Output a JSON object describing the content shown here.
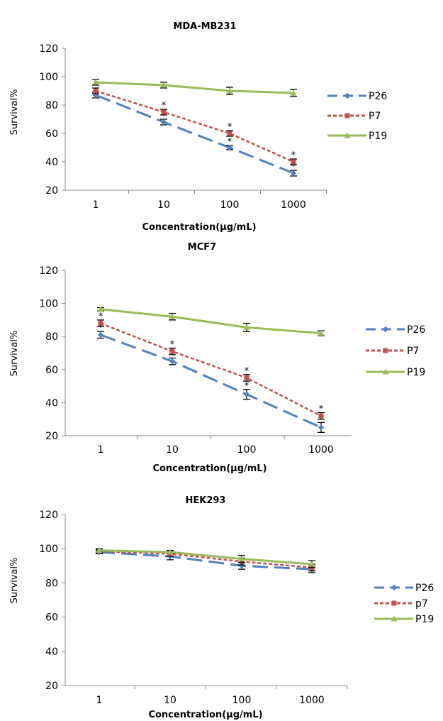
{
  "chart_data": [
    {
      "type": "line",
      "title": "MDA-MB231",
      "xlabel": "Concentration(µg/mL)",
      "ylabel": "Survival%",
      "categories": [
        "1",
        "10",
        "100",
        "1000"
      ],
      "ylim": [
        20,
        120
      ],
      "yticks": [
        20,
        40,
        60,
        80,
        100,
        120
      ],
      "legend_position": "right",
      "series": [
        {
          "name": "P26",
          "values": [
            87,
            68,
            50,
            32
          ],
          "errors": [
            2,
            2,
            1.5,
            2
          ],
          "significance": [
            false,
            true,
            true,
            true
          ],
          "color": "#4F81BD",
          "dash": "dash",
          "marker": "diamond"
        },
        {
          "name": "P7",
          "values": [
            90,
            75,
            60,
            40
          ],
          "errors": [
            2,
            2,
            2,
            2
          ],
          "significance": [
            false,
            true,
            true,
            true
          ],
          "color": "#C0504D",
          "dash": "dot",
          "marker": "square"
        },
        {
          "name": "P19",
          "values": [
            96,
            94,
            90,
            88.5
          ],
          "errors": [
            2,
            2,
            2.5,
            2.5
          ],
          "significance": [
            false,
            false,
            false,
            false
          ],
          "color": "#9BBB59",
          "dash": "solid",
          "marker": "triangle"
        }
      ]
    },
    {
      "type": "line",
      "title": "MCF7",
      "xlabel": "Concentration(µg/mL)",
      "ylabel": "Survival%",
      "categories": [
        "1",
        "10",
        "100",
        "1000"
      ],
      "ylim": [
        20,
        120
      ],
      "yticks": [
        20,
        40,
        60,
        80,
        100,
        120
      ],
      "legend_position": "right",
      "series": [
        {
          "name": "P26",
          "values": [
            81,
            65,
            45,
            25
          ],
          "errors": [
            2,
            2,
            3,
            3
          ],
          "significance": [
            true,
            true,
            true,
            true
          ],
          "color": "#4F81BD",
          "dash": "dash",
          "marker": "diamond"
        },
        {
          "name": "P7",
          "values": [
            88,
            71,
            55,
            32
          ],
          "errors": [
            2,
            2,
            2,
            2
          ],
          "significance": [
            true,
            true,
            true,
            true
          ],
          "color": "#C0504D",
          "dash": "dot",
          "marker": "square"
        },
        {
          "name": "P19",
          "values": [
            96.5,
            92,
            85.5,
            82
          ],
          "errors": [
            1,
            2,
            2.5,
            1.5
          ],
          "significance": [
            false,
            false,
            false,
            false
          ],
          "color": "#9BBB59",
          "dash": "solid",
          "marker": "triangle"
        }
      ]
    },
    {
      "type": "line",
      "title": "HEK293",
      "xlabel": "Concentration(µg/mL)",
      "ylabel": "Survival%",
      "categories": [
        "1",
        "10",
        "100",
        "1000"
      ],
      "ylim": [
        20,
        120
      ],
      "yticks": [
        20,
        40,
        60,
        80,
        100,
        120
      ],
      "legend_position": "right",
      "series": [
        {
          "name": "P26",
          "values": [
            98,
            95.5,
            90,
            88
          ],
          "errors": [
            1,
            2,
            2,
            2
          ],
          "significance": [
            false,
            false,
            false,
            false
          ],
          "color": "#4F81BD",
          "dash": "dash",
          "marker": "diamond"
        },
        {
          "name": "p7",
          "values": [
            98.5,
            97,
            92.5,
            89
          ],
          "errors": [
            1,
            1.5,
            2,
            2
          ],
          "significance": [
            false,
            false,
            false,
            false
          ],
          "color": "#C0504D",
          "dash": "dot",
          "marker": "square"
        },
        {
          "name": "P19",
          "values": [
            99,
            98,
            94,
            91
          ],
          "errors": [
            1,
            1,
            2,
            2
          ],
          "significance": [
            false,
            false,
            false,
            false
          ],
          "color": "#9BBB59",
          "dash": "solid",
          "marker": "triangle"
        }
      ]
    }
  ]
}
